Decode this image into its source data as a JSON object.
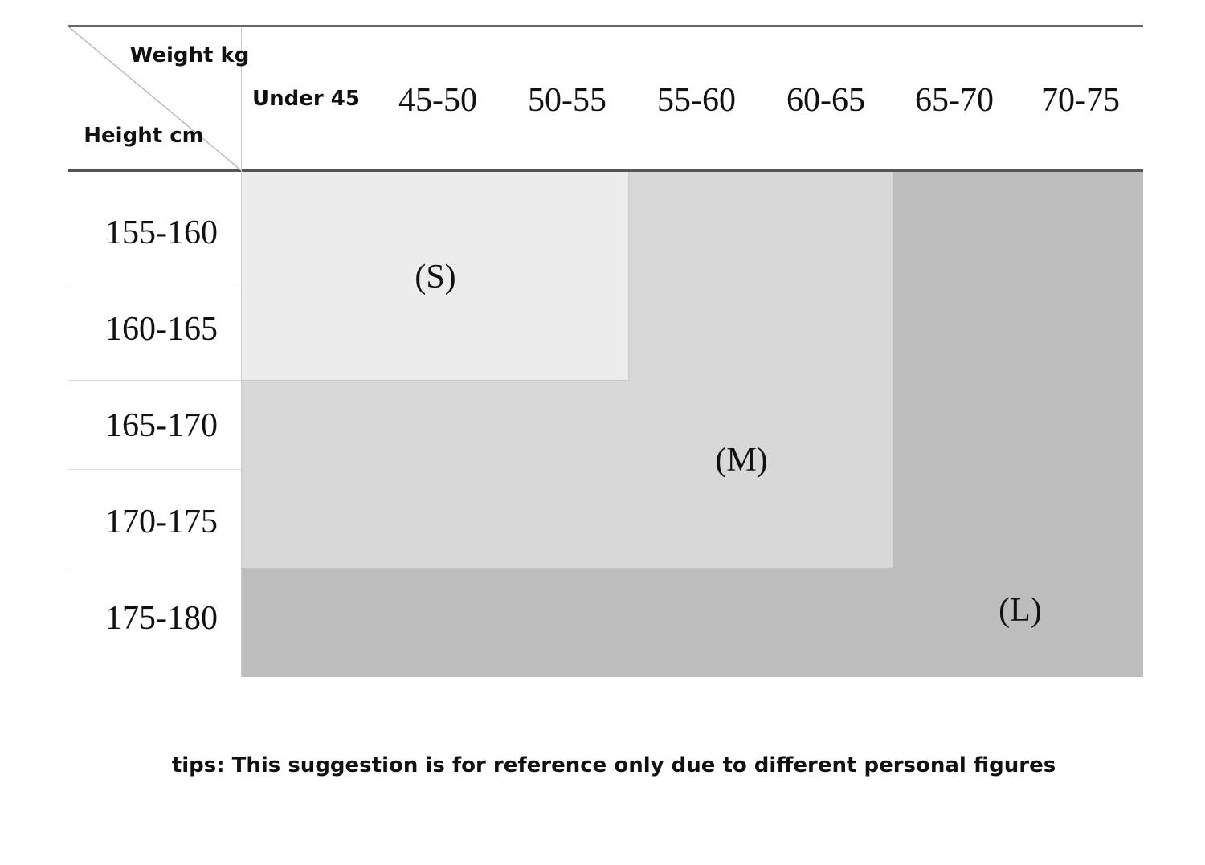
{
  "header": {
    "weight_label": "Weight kg",
    "height_label": "Height cm",
    "columns": [
      "Under 45",
      "45-50",
      "50-55",
      "55-60",
      "60-65",
      "65-70",
      "70-75"
    ]
  },
  "rows": [
    "155-160",
    "160-165",
    "165-170",
    "170-175",
    "175-180"
  ],
  "sizes": {
    "s": "(S)",
    "m": "(M)",
    "l": "(L)"
  },
  "tips": "tips: This suggestion is for reference only due to different personal figures"
}
